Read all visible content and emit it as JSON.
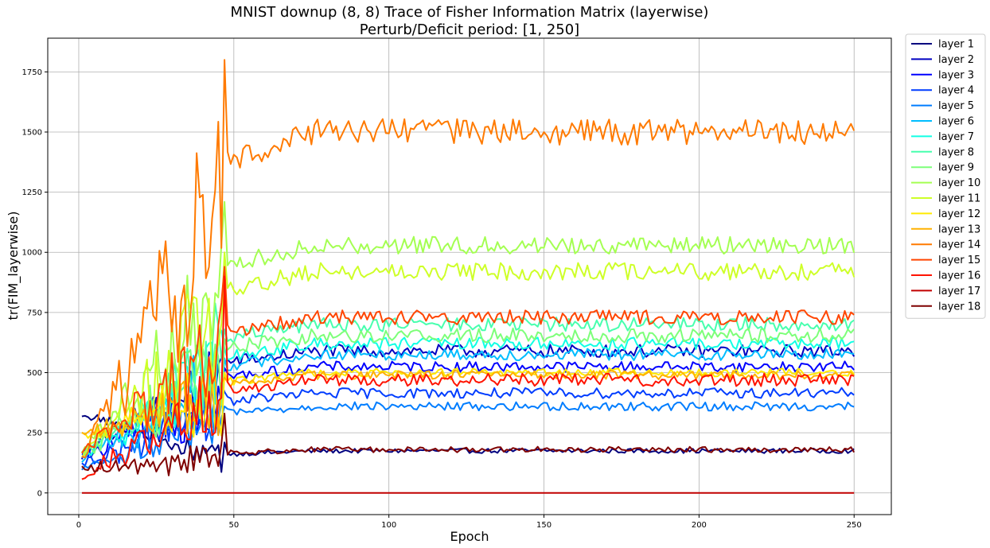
{
  "chart_data": {
    "type": "line",
    "title": "MNIST downup (8, 8) Trace of Fisher Information Matrix (layerwise)",
    "subtitle": "Perturb/Deficit period: [1, 250]",
    "xlabel": "Epoch",
    "ylabel": "tr(FIM_layerwise)",
    "xlim": [
      -10,
      262
    ],
    "ylim": [
      -90,
      1890
    ],
    "xticks": [
      0,
      50,
      100,
      150,
      200,
      250
    ],
    "yticks": [
      0,
      250,
      500,
      750,
      1000,
      1250,
      1500,
      1750
    ],
    "grid": true,
    "legend": "outside-right",
    "series": [
      {
        "name": "layer 1",
        "color": "#00007f",
        "start": 330,
        "spike": 210,
        "plateau": 175,
        "noise": 8
      },
      {
        "name": "layer 2",
        "color": "#0000c1",
        "start": 160,
        "spike": 540,
        "plateau": 590,
        "noise": 22
      },
      {
        "name": "layer 3",
        "color": "#0000ff",
        "start": 150,
        "spike": 520,
        "plateau": 525,
        "noise": 18
      },
      {
        "name": "layer 4",
        "color": "#003dff",
        "start": 120,
        "spike": 420,
        "plateau": 415,
        "noise": 18
      },
      {
        "name": "layer 5",
        "color": "#007dff",
        "start": 100,
        "spike": 360,
        "plateau": 360,
        "noise": 15
      },
      {
        "name": "layer 6",
        "color": "#00bdff",
        "start": 140,
        "spike": 560,
        "plateau": 575,
        "noise": 20
      },
      {
        "name": "layer 7",
        "color": "#10ffe5",
        "start": 150,
        "spike": 600,
        "plateau": 620,
        "noise": 22
      },
      {
        "name": "layer 8",
        "color": "#47ffae",
        "start": 160,
        "spike": 680,
        "plateau": 700,
        "noise": 25
      },
      {
        "name": "layer 9",
        "color": "#7dff79",
        "start": 170,
        "spike": 640,
        "plateau": 655,
        "noise": 25
      },
      {
        "name": "layer 10",
        "color": "#a4ff52",
        "start": 170,
        "spike": 1210,
        "plateau": 1030,
        "noise": 30
      },
      {
        "name": "layer 11",
        "color": "#ceff28",
        "start": 160,
        "spike": 1000,
        "plateau": 920,
        "noise": 30
      },
      {
        "name": "layer 12",
        "color": "#ffea00",
        "start": 230,
        "spike": 500,
        "plateau": 500,
        "noise": 15
      },
      {
        "name": "layer 13",
        "color": "#ffb100",
        "start": 240,
        "spike": 480,
        "plateau": 490,
        "noise": 15
      },
      {
        "name": "layer 14",
        "color": "#ff7a00",
        "start": 150,
        "spike": 1800,
        "plateau": 1500,
        "noise": 45
      },
      {
        "name": "layer 15",
        "color": "#ff4500",
        "start": 170,
        "spike": 940,
        "plateau": 730,
        "noise": 25
      },
      {
        "name": "layer 16",
        "color": "#ff1300",
        "start": 70,
        "spike": 900,
        "plateau": 470,
        "noise": 22
      },
      {
        "name": "layer 17",
        "color": "#c10000",
        "start": 0,
        "spike": 0,
        "plateau": 0,
        "noise": 0
      },
      {
        "name": "layer 18",
        "color": "#7f0000",
        "start": 100,
        "spike": 330,
        "plateau": 180,
        "noise": 10
      }
    ]
  }
}
